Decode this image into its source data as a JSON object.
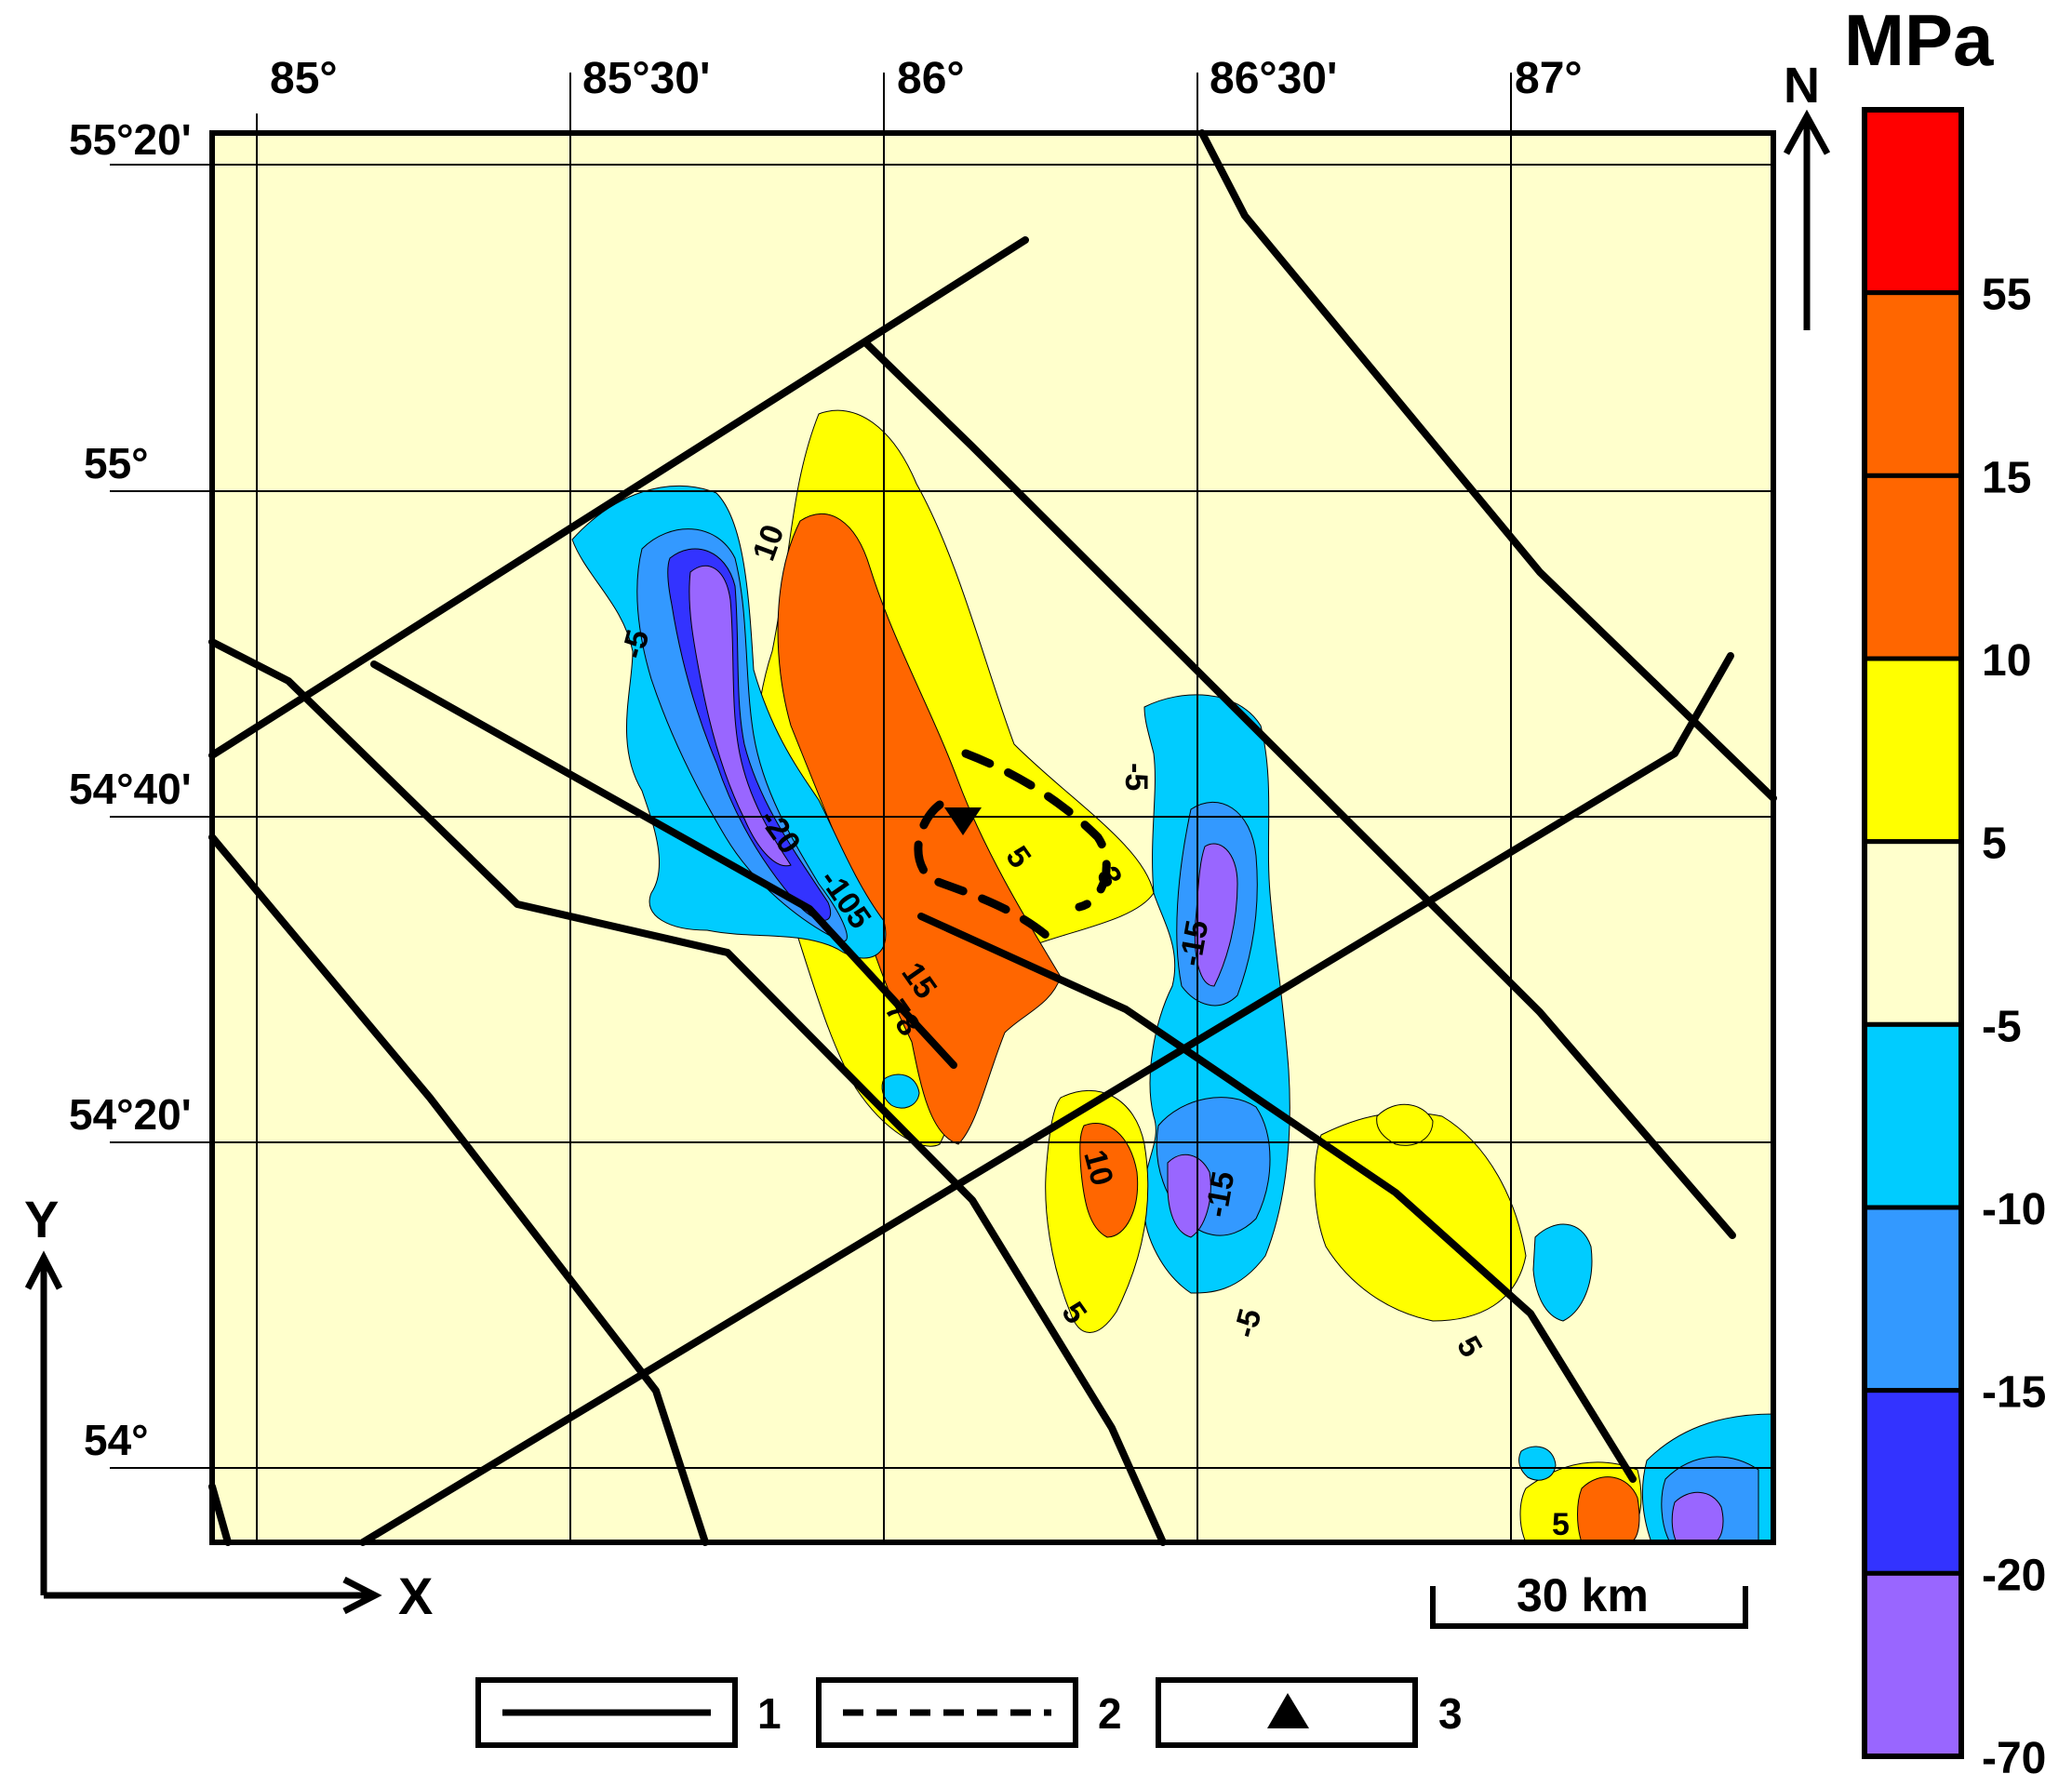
{
  "map": {
    "lon_labels": [
      "85°",
      "85°30'",
      "86°",
      "86°30'",
      "87°"
    ],
    "lat_labels": [
      "55°20'",
      "55°",
      "54°40'",
      "54°20'",
      "54°"
    ],
    "contour_labels": [
      "-5",
      "10",
      "-20",
      "-105",
      "15",
      "78",
      "5",
      "-5",
      "-15",
      "10",
      "-15",
      "-5",
      "5",
      "5",
      "5",
      "3"
    ],
    "north_label": "N",
    "x_axis_label": "X",
    "y_axis_label": "Y",
    "scale_label": "30 km"
  },
  "legend": {
    "items": [
      {
        "label": "1",
        "symbol": "solid-line"
      },
      {
        "label": "2",
        "symbol": "dashed-line"
      },
      {
        "label": "3",
        "symbol": "triangle"
      }
    ]
  },
  "colorbar": {
    "unit": "MPa",
    "ticks": [
      "55",
      "15",
      "10",
      "5",
      "-5",
      "-10",
      "-15",
      "-20",
      "-70"
    ],
    "colors": [
      "#ff0000",
      "#ff6600",
      "#ff6600",
      "#ffff00",
      "#ffffcc",
      "#00ccff",
      "#3399ff",
      "#3333ff",
      "#9966ff"
    ]
  },
  "colors": {
    "background": "#ffffcc",
    "yellow": "#ffff00",
    "orange": "#ff6600",
    "red": "#ff0000",
    "cyan": "#00ccff",
    "blue": "#3399ff",
    "darkblue": "#3333ff",
    "violet": "#9966ff"
  }
}
